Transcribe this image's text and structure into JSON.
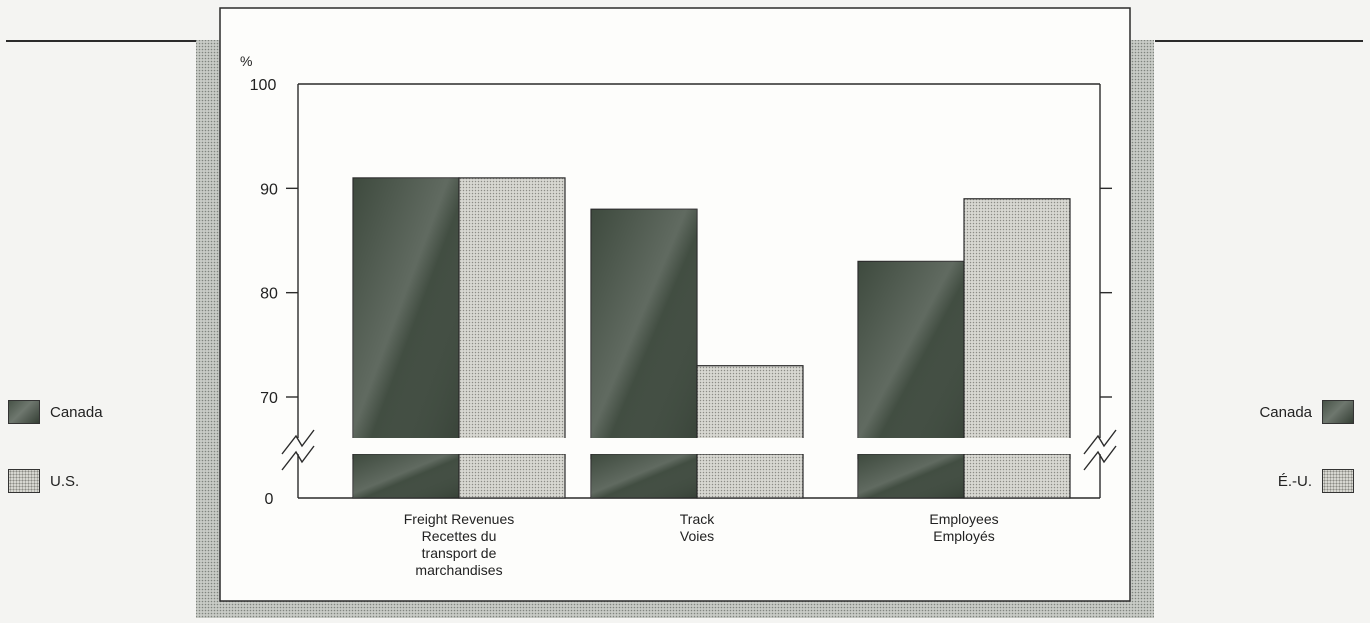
{
  "chart_data": {
    "type": "bar",
    "categories": [
      "Freight Revenues\nRecettes du\ntransport de\nmarchandises",
      "Track\nVoies",
      "Employees\nEmployés"
    ],
    "series": [
      {
        "name": "Canada",
        "values": [
          91,
          88,
          83
        ]
      },
      {
        "name": "U.S.",
        "values": [
          91,
          73,
          89
        ]
      }
    ],
    "ylabel": "%",
    "yticks": [
      0,
      70,
      80,
      90,
      100
    ],
    "ylim": [
      0,
      100
    ],
    "axis_break": "between 0 and 70",
    "grid": false,
    "colors": {
      "Canada": "#3e4a3e",
      "U.S.": "#d6d6d0"
    }
  },
  "legend_left": [
    {
      "label": "Canada",
      "series": "Canada"
    },
    {
      "label": "U.S.",
      "series": "U.S."
    }
  ],
  "legend_right": [
    {
      "label": "Canada",
      "series": "Canada"
    },
    {
      "label": "É.-U.",
      "series": "U.S."
    }
  ]
}
